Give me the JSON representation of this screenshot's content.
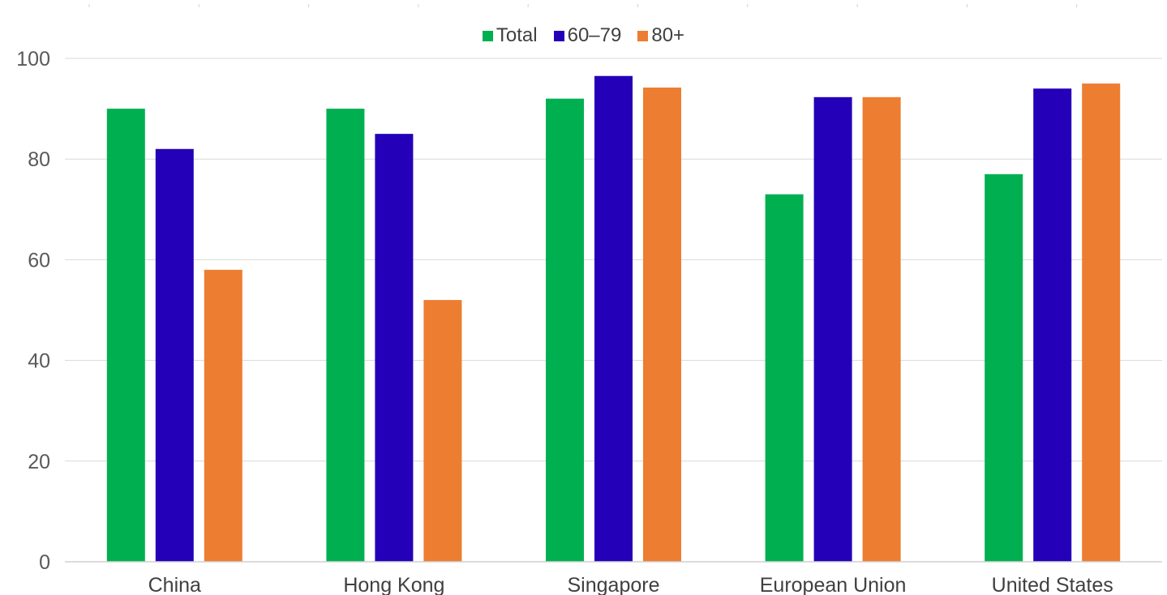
{
  "chart_data": {
    "type": "bar",
    "categories": [
      "China",
      "Hong Kong",
      "Singapore",
      "European Union",
      "United States"
    ],
    "series": [
      {
        "name": "Total",
        "color": "#00B050",
        "values": [
          90,
          90,
          92,
          73,
          77
        ]
      },
      {
        "name": "60–79",
        "color": "#2400B8",
        "values": [
          82,
          85,
          96.5,
          92.3,
          94
        ]
      },
      {
        "name": "80+",
        "color": "#ED7D31",
        "values": [
          58,
          52,
          94.2,
          92.3,
          95
        ]
      }
    ],
    "ylim": [
      0,
      100
    ],
    "yticks": [
      "0",
      "20",
      "40",
      "60",
      "80",
      "100"
    ],
    "title": "",
    "xlabel": "",
    "ylabel": "",
    "grid": true,
    "legend_position": "top-center"
  }
}
